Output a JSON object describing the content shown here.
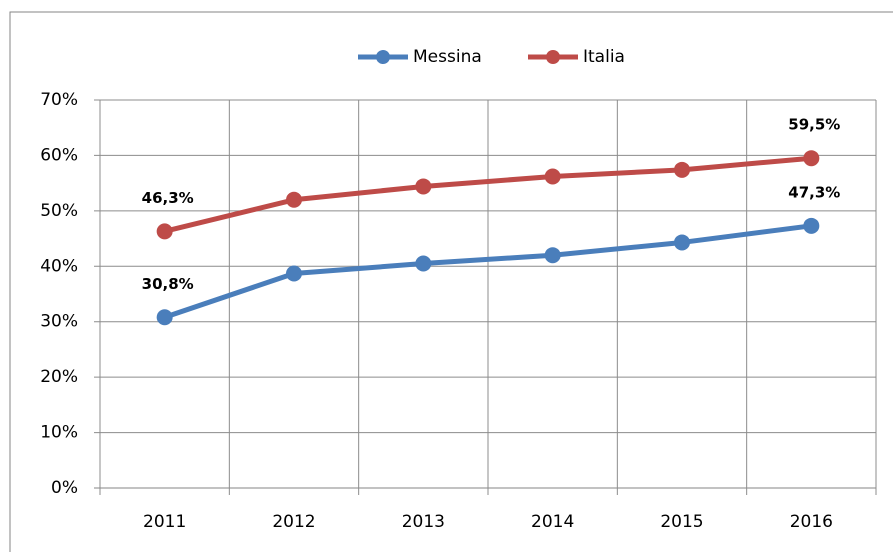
{
  "chart_data": {
    "type": "line",
    "categories": [
      "2011",
      "2012",
      "2013",
      "2014",
      "2015",
      "2016"
    ],
    "series": [
      {
        "name": "Messina",
        "color": "#4a7ebb",
        "values": [
          30.8,
          38.7,
          40.5,
          42.0,
          44.3,
          47.3
        ],
        "value_labels": [
          "30,8%",
          null,
          null,
          null,
          null,
          "47,3%"
        ]
      },
      {
        "name": "Italia",
        "color": "#be4b48",
        "values": [
          46.3,
          52.0,
          54.4,
          56.2,
          57.4,
          59.5
        ],
        "value_labels": [
          "46,3%",
          null,
          null,
          null,
          null,
          "59,5%"
        ]
      }
    ],
    "ylim": [
      0,
      70
    ],
    "yticks": [
      {
        "value": 0,
        "label": "0%"
      },
      {
        "value": 10,
        "label": "10%"
      },
      {
        "value": 20,
        "label": "20%"
      },
      {
        "value": 30,
        "label": "30%"
      },
      {
        "value": 40,
        "label": "40%"
      },
      {
        "value": 50,
        "label": "50%"
      },
      {
        "value": 60,
        "label": "60%"
      },
      {
        "value": 70,
        "label": "70%"
      }
    ],
    "grid": true,
    "legend": "top"
  }
}
